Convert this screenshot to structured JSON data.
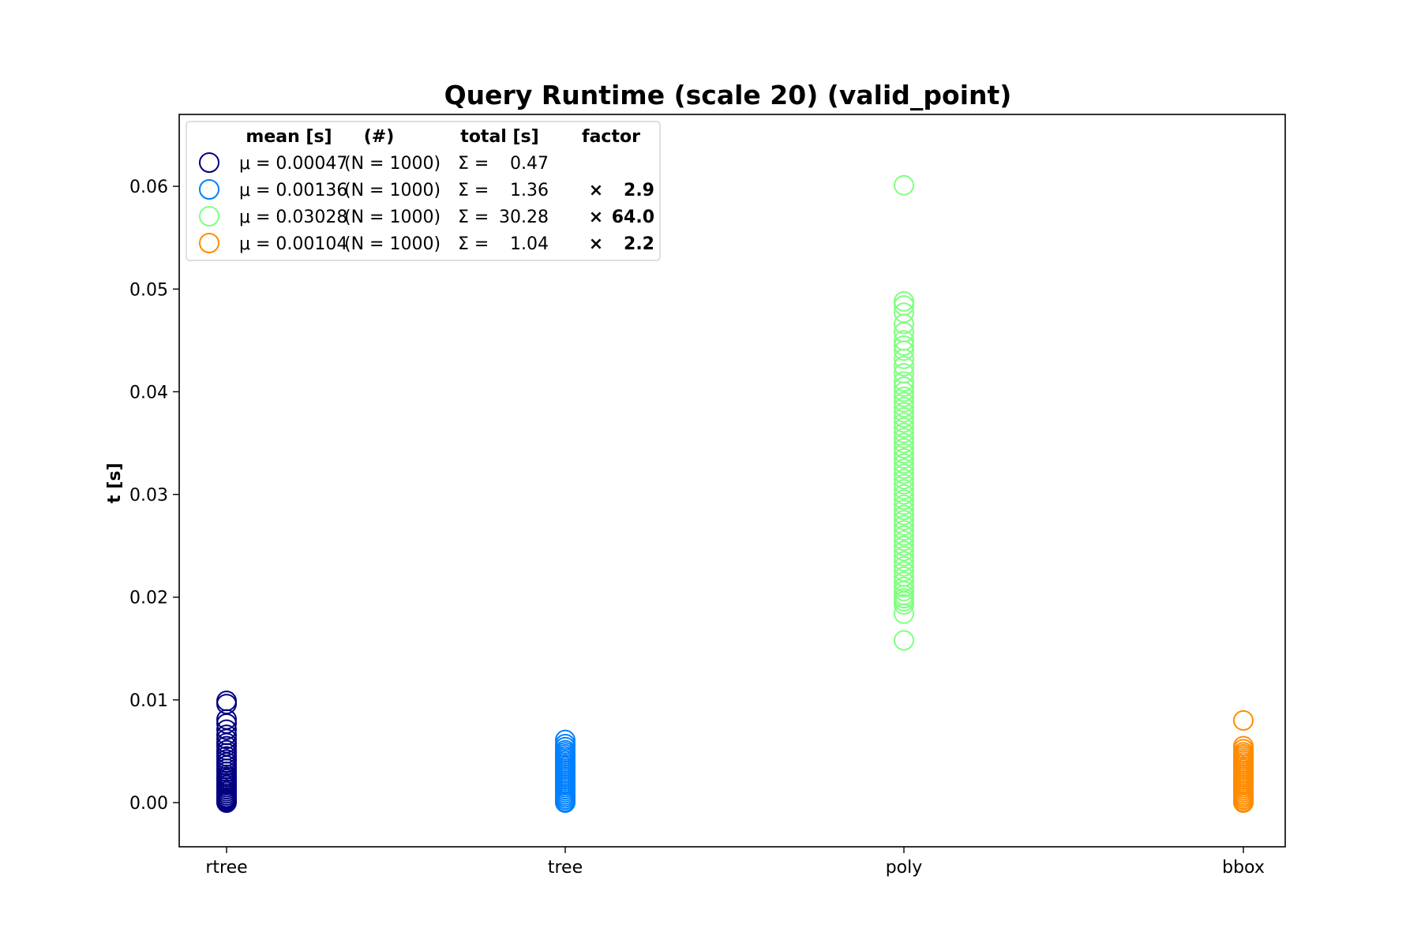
{
  "chart_data": {
    "type": "scatter",
    "title": "Query Runtime (scale 20) (valid_point)",
    "xlabel": "",
    "ylabel": "t [s]",
    "categories": [
      "rtree",
      "tree",
      "poly",
      "bbox"
    ],
    "ylim": [
      -0.0043,
      0.067
    ],
    "yticks": [
      "0.00",
      "0.01",
      "0.02",
      "0.03",
      "0.04",
      "0.05",
      "0.06"
    ],
    "grid": false,
    "legend_position": "top-left",
    "legend_headers": {
      "mean": "mean [s]",
      "count": "(#)",
      "total": "total [s]",
      "factor": "factor"
    },
    "series": [
      {
        "category": "rtree",
        "color": "#000080",
        "mean_label": "μ = 0.00047",
        "n_label": "(N = 1000)",
        "sigma_label": "Σ =",
        "total_label": "0.47",
        "factor_symbol": "",
        "factor_label": "",
        "values": [
          0.0,
          0.0001,
          0.0002,
          0.0003,
          0.0004,
          0.0005,
          0.0007,
          0.0009,
          0.0011,
          0.0013,
          0.0015,
          0.0017,
          0.0019,
          0.0021,
          0.0023,
          0.0025,
          0.0027,
          0.003,
          0.0033,
          0.0036,
          0.0039,
          0.0042,
          0.0045,
          0.0048,
          0.0051,
          0.0055,
          0.0058,
          0.0062,
          0.0066,
          0.0071,
          0.0077,
          0.0081,
          0.0096,
          0.0099
        ]
      },
      {
        "category": "tree",
        "color": "#0080ff",
        "mean_label": "μ = 0.00136",
        "n_label": "(N = 1000)",
        "sigma_label": "Σ =",
        "total_label": "1.36",
        "factor_symbol": "×",
        "factor_label": "2.9",
        "values": [
          0.0,
          0.0001,
          0.0003,
          0.0005,
          0.0007,
          0.0009,
          0.0011,
          0.0013,
          0.0015,
          0.0017,
          0.0019,
          0.0021,
          0.0023,
          0.0025,
          0.0027,
          0.0029,
          0.0031,
          0.0033,
          0.0035,
          0.0037,
          0.0039,
          0.0041,
          0.0043,
          0.0045,
          0.0047,
          0.0049,
          0.0051,
          0.0054,
          0.0057,
          0.0061
        ]
      },
      {
        "category": "poly",
        "color": "#80ff80",
        "mean_label": "μ = 0.03028",
        "n_label": "(N = 1000)",
        "sigma_label": "Σ =",
        "total_label": "30.28",
        "factor_symbol": "×",
        "factor_label": "64.0",
        "values": [
          0.0158,
          0.0184,
          0.0193,
          0.0196,
          0.0199,
          0.0202,
          0.0206,
          0.021,
          0.0215,
          0.022,
          0.0225,
          0.023,
          0.0235,
          0.024,
          0.0245,
          0.025,
          0.0255,
          0.026,
          0.0265,
          0.027,
          0.0275,
          0.028,
          0.0285,
          0.029,
          0.0295,
          0.03,
          0.0305,
          0.031,
          0.0315,
          0.032,
          0.0325,
          0.033,
          0.0335,
          0.034,
          0.0345,
          0.035,
          0.0355,
          0.036,
          0.0365,
          0.037,
          0.0375,
          0.038,
          0.0385,
          0.039,
          0.0395,
          0.04,
          0.0405,
          0.041,
          0.0418,
          0.0425,
          0.0432,
          0.044,
          0.0445,
          0.045,
          0.0458,
          0.0466,
          0.0477,
          0.0484,
          0.0488,
          0.0601
        ]
      },
      {
        "category": "bbox",
        "color": "#ff8c00",
        "mean_label": "μ = 0.00104",
        "n_label": "(N = 1000)",
        "sigma_label": "Σ =",
        "total_label": "1.04",
        "factor_symbol": "×",
        "factor_label": "2.2",
        "values": [
          0.0,
          0.0001,
          0.0003,
          0.0005,
          0.0007,
          0.0009,
          0.0011,
          0.0013,
          0.0015,
          0.0017,
          0.0019,
          0.0021,
          0.0023,
          0.0025,
          0.0027,
          0.0029,
          0.0031,
          0.0033,
          0.0035,
          0.0037,
          0.0039,
          0.0041,
          0.0043,
          0.0045,
          0.0047,
          0.0049,
          0.0052,
          0.0055,
          0.008
        ]
      }
    ]
  }
}
